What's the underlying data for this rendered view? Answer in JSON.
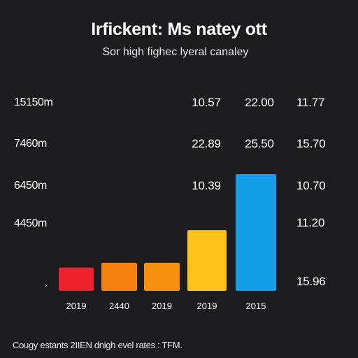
{
  "title": "Irfickent: Ms natey ott",
  "subtitle": "Sor high fighec lyeral canaley",
  "footer": "Cougy estants 2IIEN dnigh evel rates : TFM.",
  "y_labels": [
    "15150m",
    "7460m",
    "6450m",
    "4450m"
  ],
  "column_labels": {
    "col1": [
      "10.57",
      "22.89",
      "10.39"
    ],
    "col2": [
      "22.00",
      "25.50"
    ]
  },
  "right_labels": [
    "11.77",
    "15.70",
    "10.70",
    "11.20",
    "15.96"
  ],
  "caret": "›",
  "chart_data": {
    "type": "bar",
    "categories": [
      "2019",
      "2440",
      "2019",
      "2019",
      "2015"
    ],
    "values": [
      1.0,
      1.2,
      1.2,
      2.6,
      5.0
    ],
    "colors": [
      "#f0222e",
      "#f5820f",
      "#f5900f",
      "#fdc31a",
      "#129fe8"
    ],
    "title": "Irfickent: Ms natey ott",
    "subtitle": "Sor high fighec lyeral canaley",
    "ylim": [
      0,
      5.0
    ],
    "grid": false
  }
}
